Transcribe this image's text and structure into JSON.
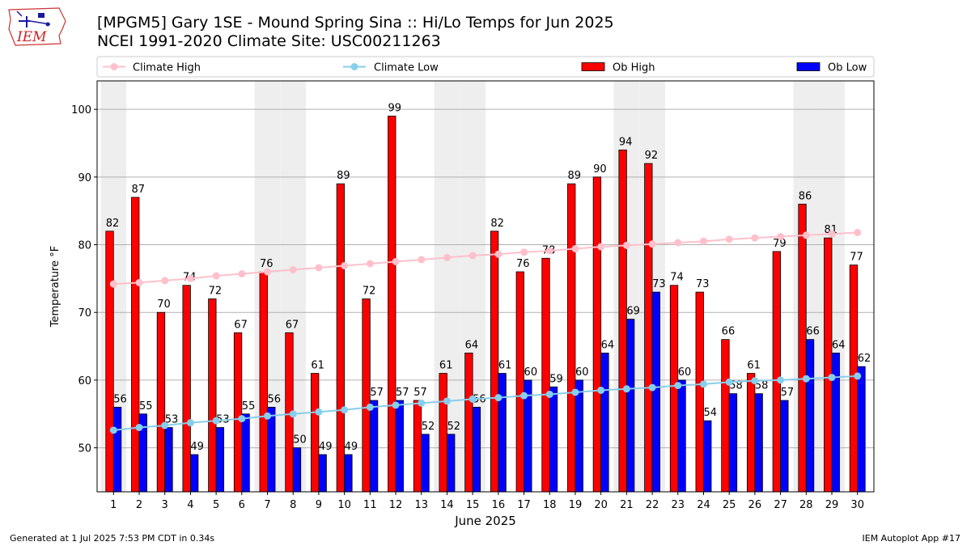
{
  "header": {
    "title_line1": "[MPGM5] Gary 1SE - Mound Spring Sina :: Hi/Lo Temps for Jun 2025",
    "title_line2": "NCEI 1991-2020 Climate Site: USC00211263"
  },
  "logo": {
    "text": "IEM",
    "icon": "iem-iowa-map-logo-icon"
  },
  "footer": {
    "left": "Generated at 1 Jul 2025 7:53 PM CDT in 0.34s",
    "right": "IEM Autoplot App #17"
  },
  "colors": {
    "ob_high": "#ff0000",
    "ob_low": "#0000ff",
    "climate_high": "#ffc0cb",
    "climate_low": "#87ceeb",
    "weekend_shade": "#eeeeee",
    "grid": "#b0b0b0"
  },
  "chart_data": {
    "type": "bar",
    "xlabel": "June 2025",
    "ylabel": "Temperature °F",
    "ylim": [
      43.5,
      104.2
    ],
    "yticks": [
      50,
      60,
      70,
      80,
      90,
      100
    ],
    "grid": "horizontal",
    "legend_position": "top",
    "categories": [
      "1",
      "2",
      "3",
      "4",
      "5",
      "6",
      "7",
      "8",
      "9",
      "10",
      "11",
      "12",
      "13",
      "14",
      "15",
      "16",
      "17",
      "18",
      "19",
      "20",
      "21",
      "22",
      "23",
      "24",
      "25",
      "26",
      "27",
      "28",
      "29",
      "30"
    ],
    "shaded_days": [
      1,
      7,
      8,
      14,
      15,
      21,
      22,
      28,
      29
    ],
    "series": [
      {
        "name": "Ob High",
        "kind": "bar",
        "values": [
          82,
          87,
          70,
          74,
          72,
          67,
          76,
          67,
          61,
          89,
          72,
          99,
          57,
          61,
          64,
          82,
          76,
          78,
          89,
          90,
          94,
          92,
          74,
          73,
          66,
          61,
          79,
          86,
          81,
          77
        ]
      },
      {
        "name": "Ob Low",
        "kind": "bar",
        "values": [
          56,
          55,
          53,
          49,
          53,
          55,
          56,
          50,
          49,
          49,
          57,
          57,
          52,
          52,
          56,
          61,
          60,
          59,
          60,
          64,
          69,
          73,
          60,
          54,
          58,
          58,
          57,
          66,
          64,
          62
        ]
      },
      {
        "name": "Climate High",
        "kind": "line",
        "values": [
          74.2,
          74.4,
          74.7,
          75.0,
          75.4,
          75.7,
          76.0,
          76.3,
          76.6,
          76.9,
          77.2,
          77.5,
          77.8,
          78.1,
          78.4,
          78.6,
          78.9,
          79.1,
          79.4,
          79.7,
          79.9,
          80.1,
          80.3,
          80.5,
          80.8,
          81.0,
          81.2,
          81.4,
          81.6,
          81.8
        ]
      },
      {
        "name": "Climate Low",
        "kind": "line",
        "values": [
          52.6,
          53.0,
          53.3,
          53.7,
          54.0,
          54.3,
          54.7,
          55.0,
          55.3,
          55.6,
          56.0,
          56.3,
          56.6,
          56.9,
          57.2,
          57.4,
          57.7,
          57.9,
          58.2,
          58.5,
          58.7,
          58.9,
          59.2,
          59.4,
          59.7,
          59.9,
          60.0,
          60.2,
          60.4,
          60.6
        ]
      }
    ]
  }
}
